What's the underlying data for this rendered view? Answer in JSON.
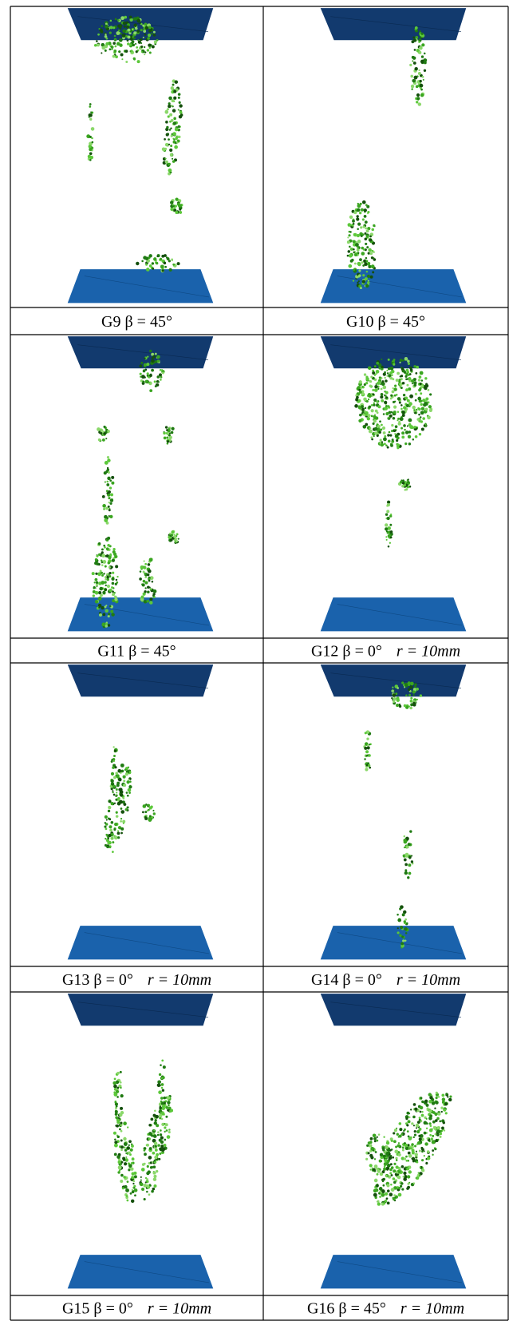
{
  "panels": [
    {
      "id": "G9",
      "angle": "β = 45°"
    },
    {
      "id": "G10",
      "angle": "β = 45°"
    },
    {
      "id": "G11",
      "angle": "β = 45°"
    },
    {
      "id": "G12",
      "angle": "β = 0°",
      "radius": "r = 10mm"
    },
    {
      "id": "G13",
      "angle": "β = 0°",
      "radius": "r = 10mm"
    },
    {
      "id": "G14",
      "angle": "β = 0°",
      "radius": "r = 10mm"
    },
    {
      "id": "G15",
      "angle": "β = 0°",
      "radius": "r = 10mm"
    },
    {
      "id": "G16",
      "angle": "β = 45°",
      "radius": "r = 10mm"
    }
  ]
}
